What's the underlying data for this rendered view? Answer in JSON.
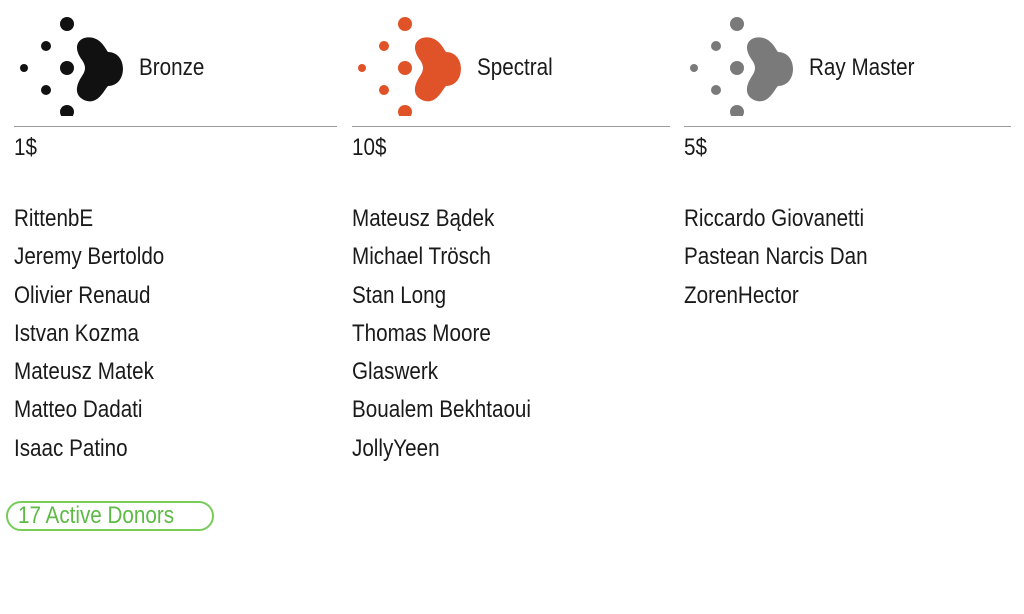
{
  "tiers": [
    {
      "id": "bronze",
      "name": "Bronze",
      "price": "1$",
      "color": "#111111",
      "icon": "dots-arrow-logo",
      "donors": [
        "RittenbE",
        "Jeremy Bertoldo",
        "Olivier Renaud",
        "Istvan Kozma",
        "Mateusz Matek",
        "Matteo Dadati",
        "Isaac Patino"
      ]
    },
    {
      "id": "spectral",
      "name": "Spectral",
      "price": "10$",
      "color": "#e05228",
      "icon": "dots-arrow-logo",
      "donors": [
        "Mateusz Bądek",
        "Michael Trösch",
        "Stan Long",
        "Thomas Moore",
        "Glaswerk",
        "Boualem Bekhtaoui",
        "JollyYeen"
      ]
    },
    {
      "id": "ray-master",
      "name": "Ray Master",
      "price": "5$",
      "color": "#7a7a7a",
      "icon": "dots-arrow-logo",
      "donors": [
        "Riccardo Giovanetti",
        "Pastean Narcis Dan",
        "ZorenHector"
      ]
    }
  ],
  "summary": {
    "active_donors_label": "17 Active Donors",
    "badge_color": "#77cc5a"
  }
}
